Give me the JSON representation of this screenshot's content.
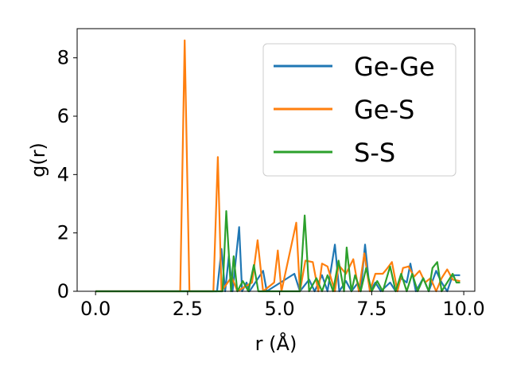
{
  "chart_data": {
    "type": "line",
    "title": "",
    "xlabel": "r (Å)",
    "ylabel": "g(r)",
    "xlim": [
      -0.5,
      10.3
    ],
    "ylim": [
      0,
      9
    ],
    "xticks": [
      "0.0",
      "2.5",
      "5.0",
      "7.5",
      "10.0"
    ],
    "yticks": [
      "0",
      "2",
      "4",
      "6",
      "8"
    ],
    "grid": false,
    "legend_position": "top-right",
    "series": [
      {
        "name": "Ge-Ge",
        "color": "#1f77b4",
        "points": [
          [
            0.0,
            0.0
          ],
          [
            3.3,
            0.0
          ],
          [
            3.42,
            1.45
          ],
          [
            3.52,
            0.0
          ],
          [
            3.62,
            1.2
          ],
          [
            3.72,
            0.0
          ],
          [
            3.9,
            2.2
          ],
          [
            3.98,
            0.0
          ],
          [
            4.1,
            0.3
          ],
          [
            4.18,
            0.0
          ],
          [
            4.55,
            0.7
          ],
          [
            4.65,
            0.0
          ],
          [
            5.4,
            0.6
          ],
          [
            5.55,
            0.0
          ],
          [
            5.8,
            0.4
          ],
          [
            5.95,
            0.0
          ],
          [
            6.15,
            0.55
          ],
          [
            6.3,
            0.0
          ],
          [
            6.5,
            1.6
          ],
          [
            6.62,
            0.0
          ],
          [
            6.8,
            0.35
          ],
          [
            6.95,
            0.0
          ],
          [
            7.1,
            0.25
          ],
          [
            7.2,
            0.0
          ],
          [
            7.32,
            1.6
          ],
          [
            7.45,
            0.0
          ],
          [
            7.6,
            0.3
          ],
          [
            7.75,
            0.0
          ],
          [
            8.0,
            0.3
          ],
          [
            8.15,
            0.0
          ],
          [
            8.3,
            0.45
          ],
          [
            8.45,
            0.3
          ],
          [
            8.55,
            0.95
          ],
          [
            8.7,
            0.0
          ],
          [
            8.9,
            0.45
          ],
          [
            9.05,
            0.0
          ],
          [
            9.25,
            0.7
          ],
          [
            9.4,
            0.3
          ],
          [
            9.55,
            0.0
          ],
          [
            9.7,
            0.55
          ],
          [
            9.9,
            0.55
          ]
        ]
      },
      {
        "name": "Ge-S",
        "color": "#ff7f0e",
        "points": [
          [
            0.0,
            0.0
          ],
          [
            2.3,
            0.0
          ],
          [
            2.42,
            8.6
          ],
          [
            2.55,
            0.0
          ],
          [
            3.2,
            0.0
          ],
          [
            3.32,
            4.6
          ],
          [
            3.42,
            0.0
          ],
          [
            3.7,
            0.5
          ],
          [
            3.85,
            0.0
          ],
          [
            4.25,
            0.3
          ],
          [
            4.4,
            1.75
          ],
          [
            4.55,
            0.0
          ],
          [
            4.85,
            0.3
          ],
          [
            4.95,
            1.4
          ],
          [
            5.05,
            0.0
          ],
          [
            5.45,
            2.35
          ],
          [
            5.55,
            0.0
          ],
          [
            5.7,
            1.05
          ],
          [
            5.9,
            1.0
          ],
          [
            6.05,
            0.0
          ],
          [
            6.15,
            0.95
          ],
          [
            6.3,
            0.85
          ],
          [
            6.5,
            0.0
          ],
          [
            6.6,
            0.9
          ],
          [
            6.8,
            0.6
          ],
          [
            7.0,
            1.1
          ],
          [
            7.15,
            0.0
          ],
          [
            7.3,
            1.3
          ],
          [
            7.45,
            0.0
          ],
          [
            7.6,
            0.6
          ],
          [
            7.8,
            0.6
          ],
          [
            7.9,
            0.75
          ],
          [
            8.05,
            1.0
          ],
          [
            8.2,
            0.0
          ],
          [
            8.35,
            0.8
          ],
          [
            8.5,
            0.85
          ],
          [
            8.65,
            0.5
          ],
          [
            8.8,
            0.7
          ],
          [
            8.95,
            0.3
          ],
          [
            9.1,
            0.45
          ],
          [
            9.25,
            0.0
          ],
          [
            9.4,
            0.45
          ],
          [
            9.55,
            0.75
          ],
          [
            9.7,
            0.4
          ],
          [
            9.9,
            0.35
          ]
        ]
      },
      {
        "name": "S-S",
        "color": "#2ca02c",
        "points": [
          [
            0.0,
            0.0
          ],
          [
            3.45,
            0.0
          ],
          [
            3.55,
            2.75
          ],
          [
            3.68,
            0.0
          ],
          [
            3.75,
            1.2
          ],
          [
            3.85,
            0.0
          ],
          [
            4.0,
            0.35
          ],
          [
            4.15,
            0.0
          ],
          [
            4.3,
            0.9
          ],
          [
            4.42,
            0.0
          ],
          [
            5.55,
            0.0
          ],
          [
            5.68,
            2.6
          ],
          [
            5.8,
            0.0
          ],
          [
            6.0,
            0.45
          ],
          [
            6.15,
            0.0
          ],
          [
            6.3,
            0.55
          ],
          [
            6.45,
            0.0
          ],
          [
            6.6,
            1.05
          ],
          [
            6.75,
            0.0
          ],
          [
            6.82,
            1.5
          ],
          [
            6.95,
            0.0
          ],
          [
            7.05,
            0.55
          ],
          [
            7.2,
            0.0
          ],
          [
            7.35,
            0.8
          ],
          [
            7.5,
            0.0
          ],
          [
            7.65,
            0.35
          ],
          [
            7.8,
            0.0
          ],
          [
            8.0,
            0.85
          ],
          [
            8.15,
            0.0
          ],
          [
            8.3,
            0.6
          ],
          [
            8.45,
            0.0
          ],
          [
            8.6,
            0.6
          ],
          [
            8.75,
            0.0
          ],
          [
            8.9,
            0.45
          ],
          [
            9.05,
            0.0
          ],
          [
            9.15,
            0.8
          ],
          [
            9.28,
            1.0
          ],
          [
            9.4,
            0.0
          ],
          [
            9.55,
            0.3
          ],
          [
            9.7,
            0.6
          ],
          [
            9.8,
            0.3
          ],
          [
            9.9,
            0.3
          ]
        ]
      }
    ]
  }
}
